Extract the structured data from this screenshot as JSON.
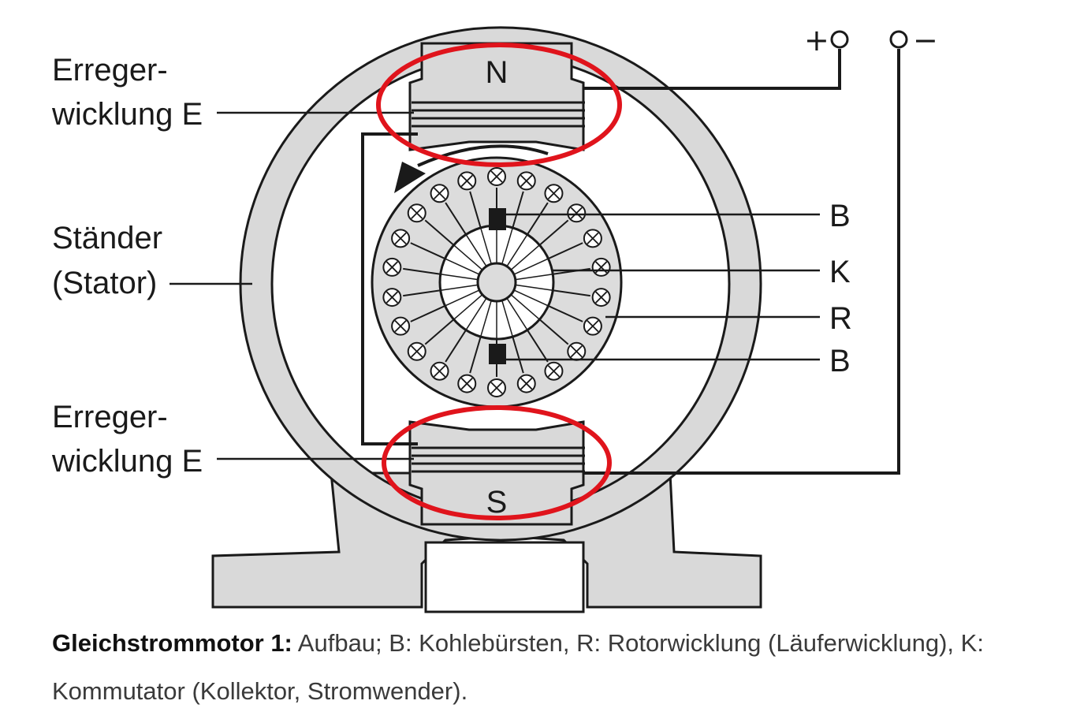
{
  "labels": {
    "excitation_top": [
      "Erreger-",
      "wicklung E"
    ],
    "stator": [
      "Ständer",
      "(Stator)"
    ],
    "excitation_bottom": [
      "Erreger-",
      "wicklung E"
    ],
    "brush_top": "B",
    "commutator": "K",
    "rotor_winding": "R",
    "brush_bottom": "B",
    "pole_north": "N",
    "pole_south": "S",
    "terminal_plus": "+",
    "terminal_minus": "−"
  },
  "caption": {
    "title": "Gleichstrommotor 1:",
    "text": " Aufbau; B: Kohlebürsten, R: Rotorwicklung (Läuferwicklung), K: Kommutator (Kollektor, Stromwender)."
  },
  "colors": {
    "housing": "#d9d9d9",
    "rotor": "#dcdcdc",
    "ink": "#1a1a1a",
    "highlight": "#e0141c"
  }
}
